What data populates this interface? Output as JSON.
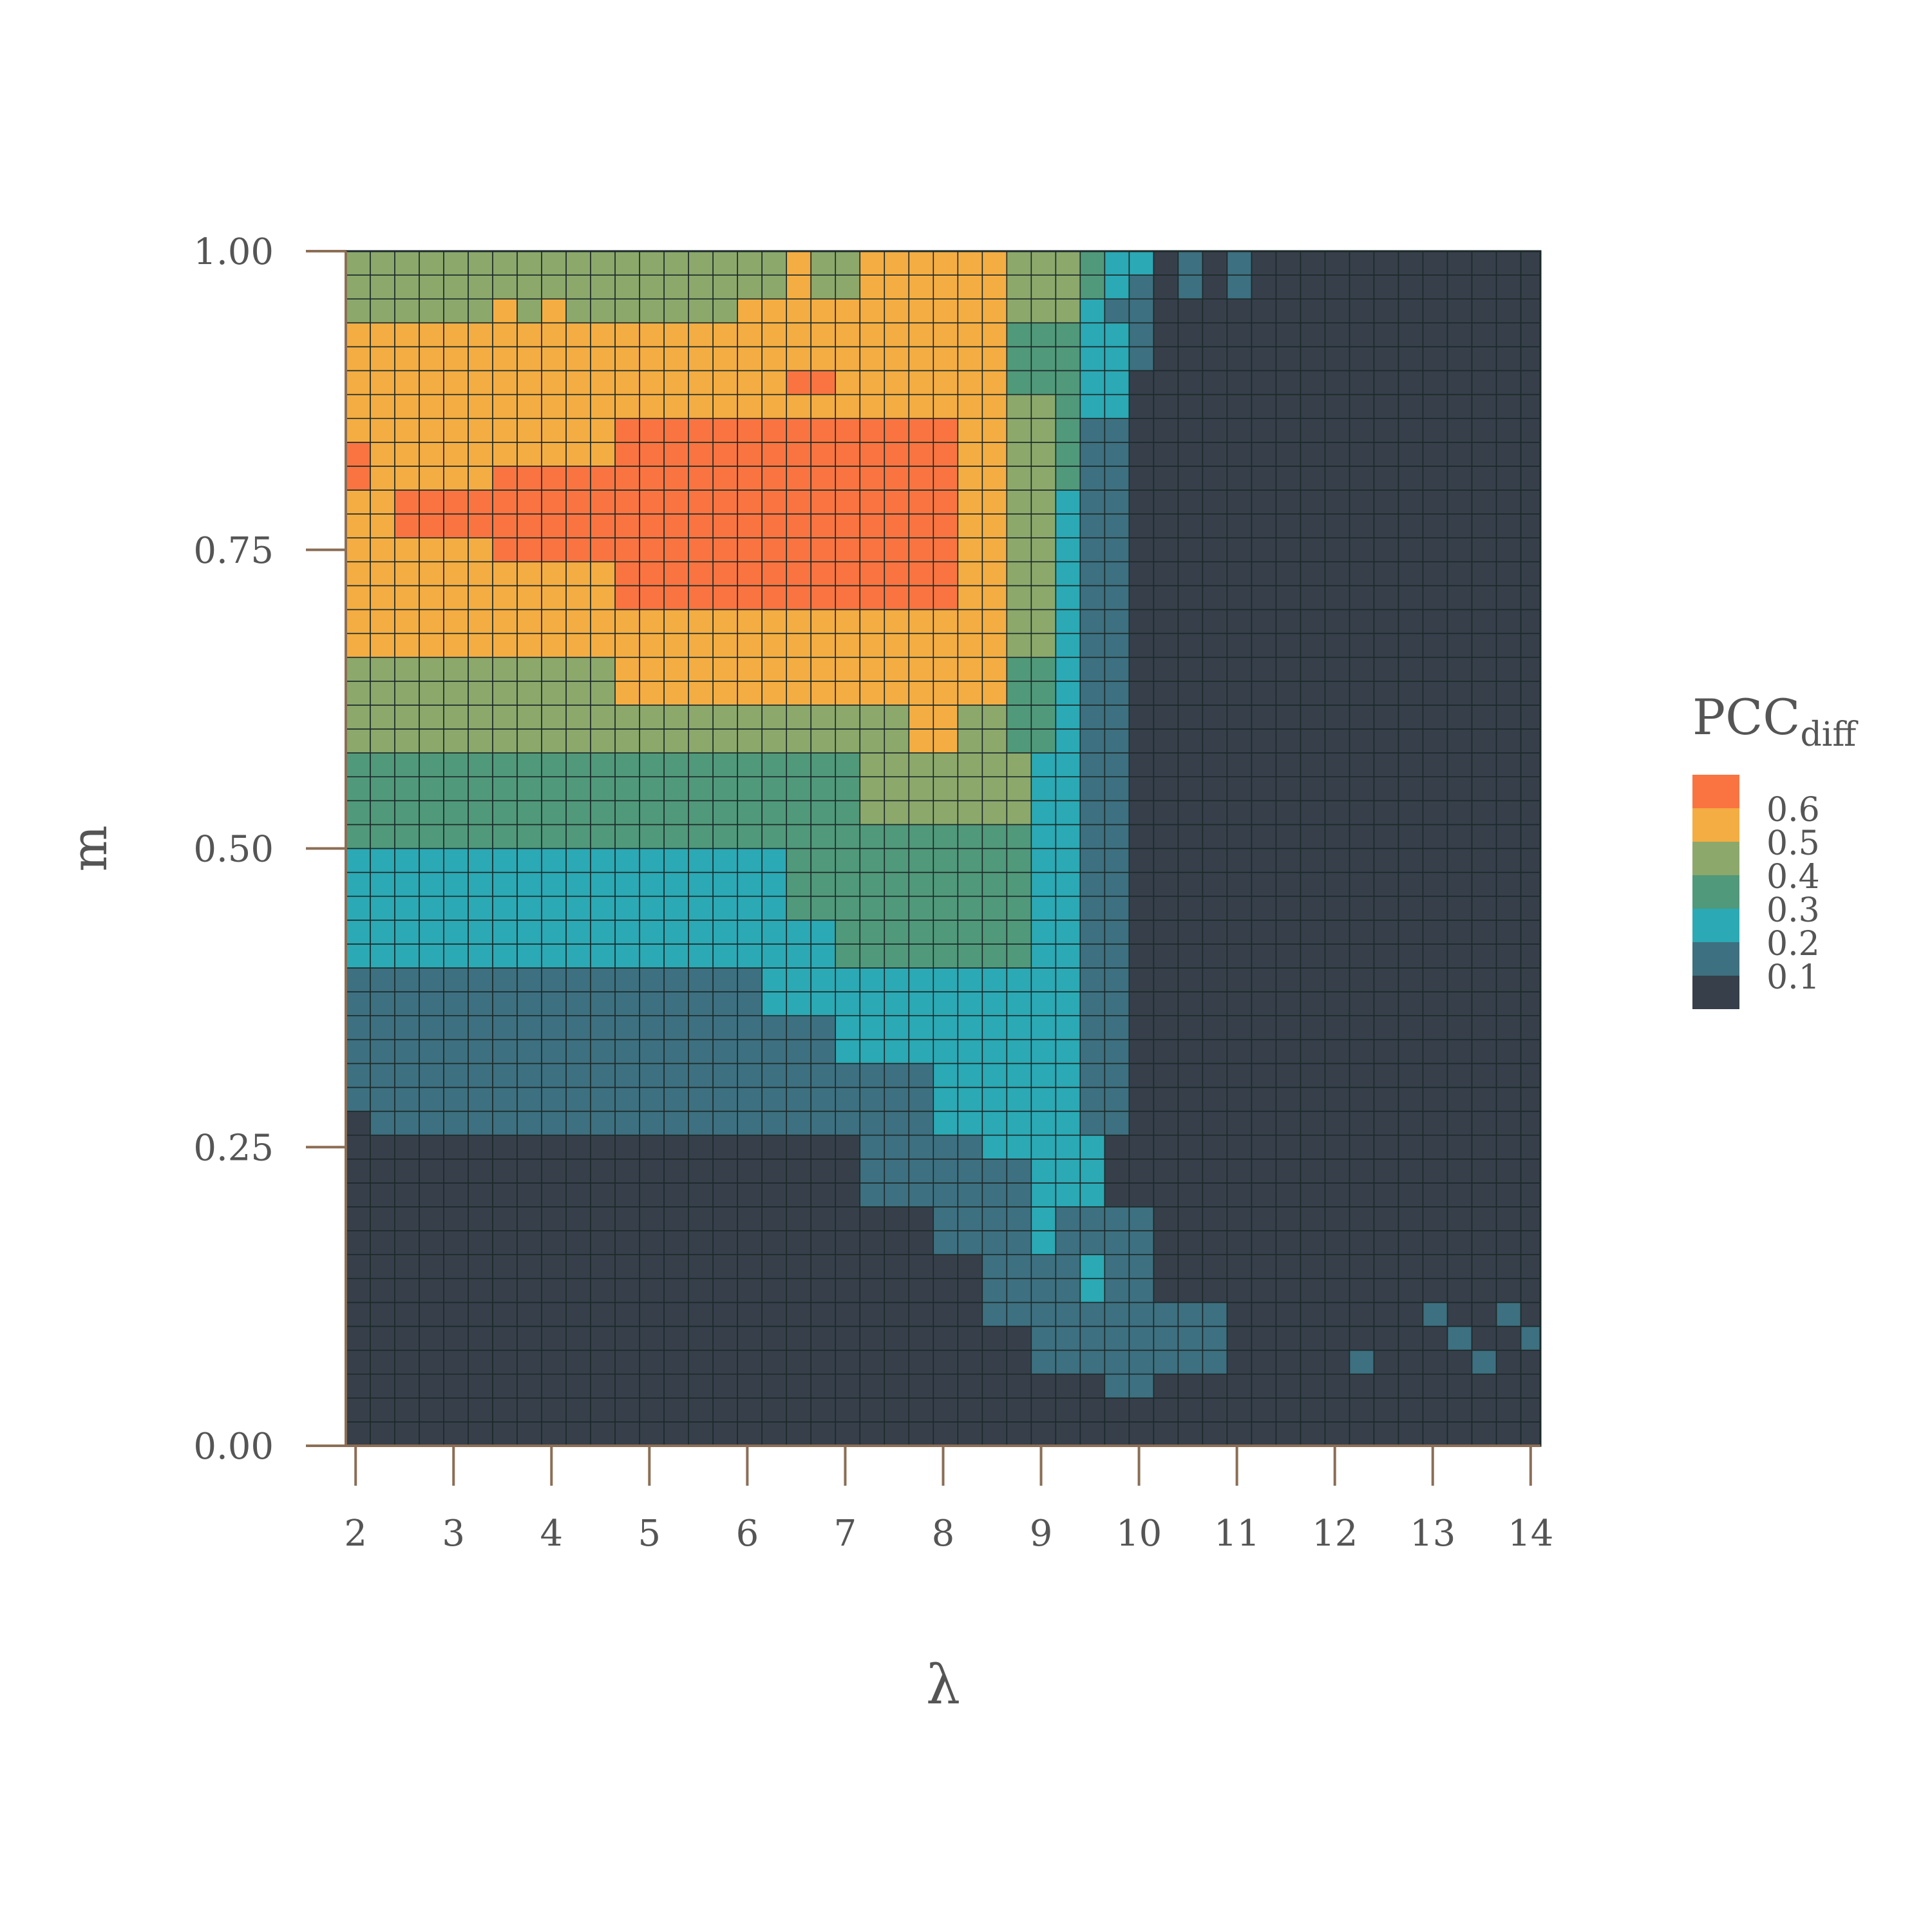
{
  "chart_data": {
    "type": "heatmap",
    "title": "",
    "xlabel": "λ",
    "ylabel": "m",
    "xlim": [
      1.9,
      14.1
    ],
    "ylim": [
      0,
      1
    ],
    "x_ticks": [
      "2",
      "3",
      "4",
      "5",
      "6",
      "7",
      "8",
      "9",
      "10",
      "11",
      "12",
      "13",
      "14"
    ],
    "y_ticks": [
      "0.00",
      "0.25",
      "0.50",
      "0.75",
      "1.00"
    ],
    "x_tick_values": [
      2,
      3,
      4,
      5,
      6,
      7,
      8,
      9,
      10,
      11,
      12,
      13,
      14
    ],
    "y_tick_values": [
      0,
      0.25,
      0.5,
      0.75,
      1.0
    ],
    "grid": {
      "x_start": 1.9,
      "x_step": 0.25,
      "n_cols": 49,
      "y_start": 0.0,
      "y_step": 0.02,
      "n_rows": 50,
      "cell_value_note": "class index 0-5 maps to legend levels 0.1..0.6"
    },
    "legend": {
      "title": "PCC",
      "title_subscript": "diff",
      "position": "right",
      "levels": [
        "0.6",
        "0.5",
        "0.4",
        "0.3",
        "0.2",
        "0.1"
      ],
      "colors": [
        "#f97440",
        "#f4ad42",
        "#8ca86b",
        "#50997a",
        "#2ba9b4",
        "#3d7080",
        "#363f4a"
      ]
    },
    "regions": {
      "upper_band": "m 0.95-1.00: 0.4 (green) on left, rising λ",
      "orange_core": "m ~0.66-0.88, λ ~3-8: 0.5-0.6",
      "green_band": "m ~0.58-0.65: 0.4",
      "teal_band": "m ~0.40-0.50: 0.3",
      "blue_band": "m ~0.28-0.40: 0.2",
      "dark_region": "m < 0.26 and λ > 10: 0.1"
    },
    "cells": []
  },
  "colors": {
    "axis": "#8b6e55",
    "gridline": "#1c2a2a",
    "text": "#555555"
  }
}
